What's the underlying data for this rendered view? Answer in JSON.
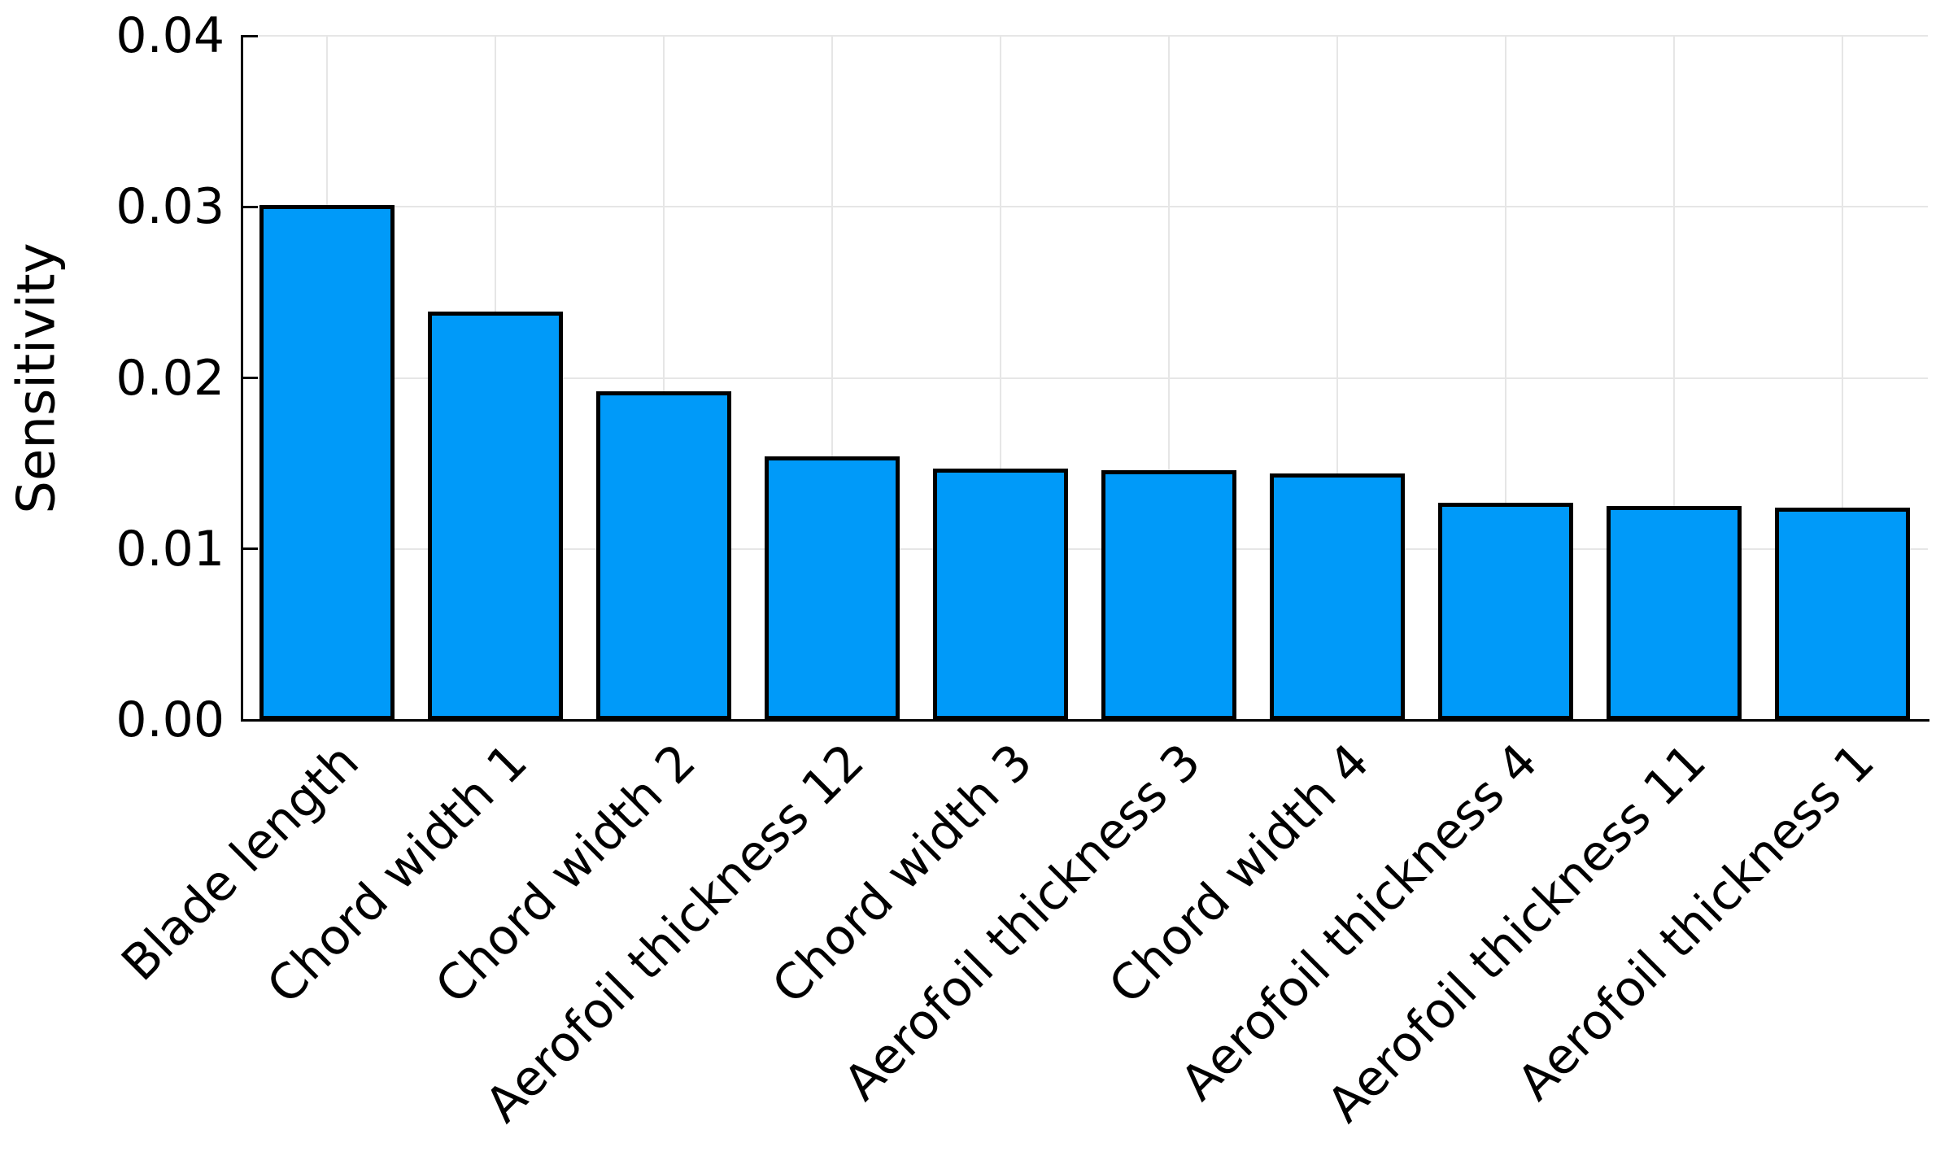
{
  "chart_data": {
    "type": "bar",
    "title": "",
    "xlabel": "",
    "ylabel": "Sensitivity",
    "categories": [
      "Blade length",
      "Chord width 1",
      "Chord width 2",
      "Aerofoil thickness 12",
      "Chord width 3",
      "Aerofoil thickness 3",
      "Chord width 4",
      "Aerofoil thickness 4",
      "Aerofoil thickness 11",
      "Aerofoil thickness 1"
    ],
    "values": [
      0.0301,
      0.0239,
      0.0192,
      0.0154,
      0.0147,
      0.0146,
      0.0144,
      0.0127,
      0.0125,
      0.0124
    ],
    "ylim": [
      0.0,
      0.04
    ],
    "yticks": [
      "0.00",
      "0.01",
      "0.02",
      "0.03",
      "0.04"
    ],
    "ytick_values": [
      0.0,
      0.01,
      0.02,
      0.03,
      0.04
    ],
    "xtick_rotation_deg": 45,
    "grid": "on",
    "legend": "none",
    "colors": {
      "bar_fill": "#009AF9",
      "bar_edge": "#000000",
      "gridline": "#E6E6E6",
      "axis": "#000000",
      "text": "#000000",
      "background": "#FFFFFF"
    }
  }
}
